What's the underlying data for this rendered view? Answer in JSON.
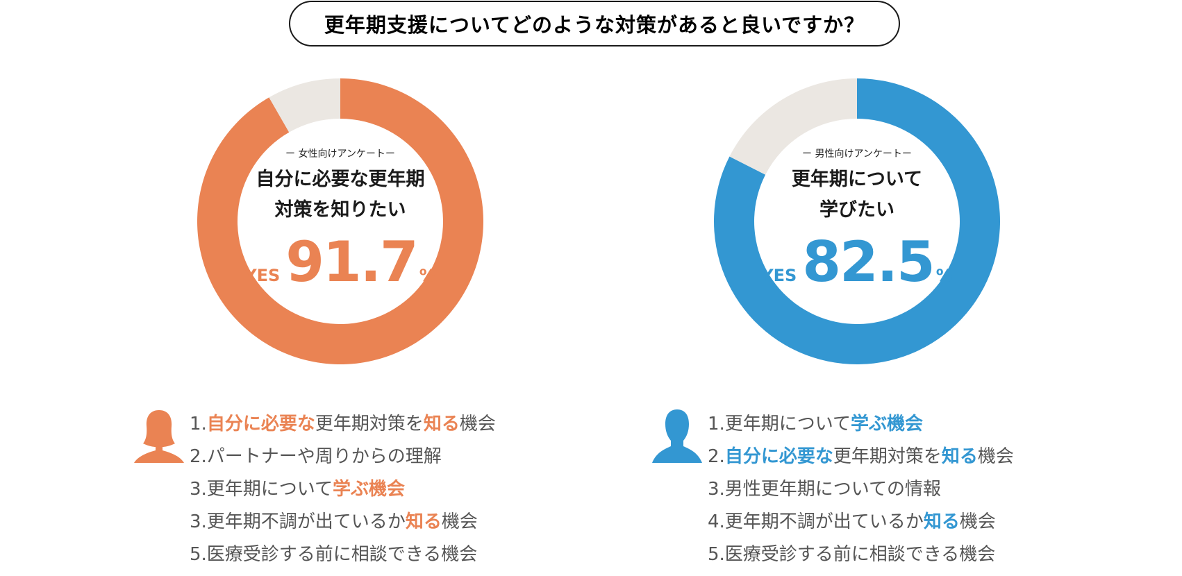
{
  "title": "更年期支援についてどのような対策があると良いですか？",
  "chart_data": [
    {
      "type": "pie",
      "variant": "donut",
      "survey_label": "ー 女性向けアンケートー",
      "headline_line1": "自分に必要な更年期",
      "headline_line2": "対策を知りたい",
      "yes_label": "YES",
      "value_text": "91.7",
      "unit": "%",
      "slices": [
        {
          "label": "YES",
          "value": 91.7,
          "color": "#ea8353"
        },
        {
          "label": "other",
          "value": 8.3,
          "color": "#ebe7e2"
        }
      ]
    },
    {
      "type": "pie",
      "variant": "donut",
      "survey_label": "ー 男性向けアンケートー",
      "headline_line1": "更年期について",
      "headline_line2": "学びたい",
      "yes_label": "YES",
      "value_text": "82.5",
      "unit": "%",
      "slices": [
        {
          "label": "YES",
          "value": 82.5,
          "color": "#3397d2"
        },
        {
          "label": "other",
          "value": 17.5,
          "color": "#ebe7e2"
        }
      ]
    }
  ],
  "female_list": [
    {
      "parts": [
        {
          "t": "1.",
          "hl": false
        },
        {
          "t": "自分に必要な",
          "hl": true
        },
        {
          "t": "更年期対策を",
          "hl": false
        },
        {
          "t": "知る",
          "hl": true
        },
        {
          "t": "機会",
          "hl": false
        }
      ]
    },
    {
      "parts": [
        {
          "t": "2.パートナーや周りからの理解",
          "hl": false
        }
      ]
    },
    {
      "parts": [
        {
          "t": "3.更年期について",
          "hl": false
        },
        {
          "t": "学ぶ機会",
          "hl": true
        }
      ]
    },
    {
      "parts": [
        {
          "t": "3.更年期不調が出ているか",
          "hl": false
        },
        {
          "t": "知る",
          "hl": true
        },
        {
          "t": "機会",
          "hl": false
        }
      ]
    },
    {
      "parts": [
        {
          "t": "5.医療受診する前に相談できる機会",
          "hl": false
        }
      ]
    }
  ],
  "male_list": [
    {
      "parts": [
        {
          "t": "1.更年期について",
          "hl": false
        },
        {
          "t": "学ぶ機会",
          "hl": true
        }
      ]
    },
    {
      "parts": [
        {
          "t": "2.",
          "hl": false
        },
        {
          "t": "自分に必要な",
          "hl": true
        },
        {
          "t": "更年期対策を",
          "hl": false
        },
        {
          "t": "知る",
          "hl": true
        },
        {
          "t": "機会",
          "hl": false
        }
      ]
    },
    {
      "parts": [
        {
          "t": "3.男性更年期についての情報",
          "hl": false
        }
      ]
    },
    {
      "parts": [
        {
          "t": "4.更年期不調が出ているか",
          "hl": false
        },
        {
          "t": "知る",
          "hl": true
        },
        {
          "t": "機会",
          "hl": false
        }
      ]
    },
    {
      "parts": [
        {
          "t": "5.医療受診する前に相談できる機会",
          "hl": false
        }
      ]
    }
  ],
  "icons": {
    "female": {
      "name": "female-person-icon",
      "color": "#ea8353"
    },
    "male": {
      "name": "male-person-icon",
      "color": "#3397d2"
    }
  }
}
